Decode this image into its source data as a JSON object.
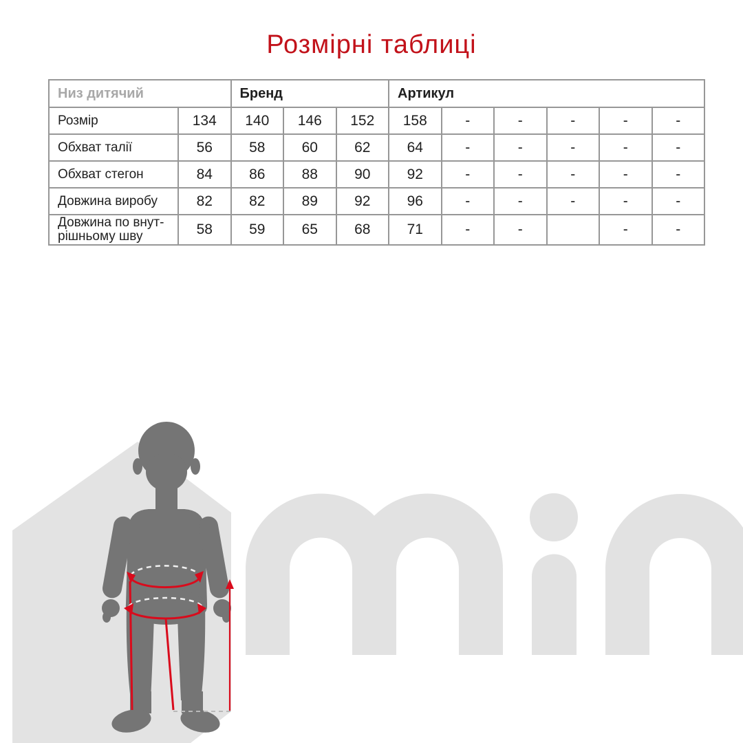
{
  "title": "Розмірні таблиці",
  "table": {
    "header": {
      "col1": "Низ дитячий",
      "col2": "Бренд",
      "col3": "Артикул"
    },
    "rows": [
      {
        "label": "Розмір",
        "values": [
          "134",
          "140",
          "146",
          "152",
          "158",
          "-",
          "-",
          "-",
          "-",
          "-"
        ]
      },
      {
        "label": "Обхват талії",
        "values": [
          "56",
          "58",
          "60",
          "62",
          "64",
          "-",
          "-",
          "-",
          "-",
          "-"
        ]
      },
      {
        "label": "Обхват стегон",
        "values": [
          "84",
          "86",
          "88",
          "90",
          "92",
          "-",
          "-",
          "-",
          "-",
          "-"
        ]
      },
      {
        "label": "Довжина виробу",
        "values": [
          "82",
          "82",
          "89",
          "92",
          "96",
          "-",
          "-",
          "-",
          "-",
          "-"
        ]
      },
      {
        "label": "Довжина по внут-\nрішньому шву",
        "values": [
          "58",
          "59",
          "65",
          "68",
          "71",
          "-",
          "-",
          "",
          "-",
          "-"
        ]
      }
    ]
  },
  "watermark": {
    "text": "min"
  },
  "colors": {
    "title-red": "#c2121a",
    "accent-red": "#d90b1c",
    "silhouette-gray": "#757575",
    "shape-gray": "#e3e3e3",
    "watermark-gray": "#e2e2e2",
    "border-gray": "#979797",
    "muted-text": "#a8a8a8",
    "text-dark": "#1f1f1f",
    "dash-gray": "#b9b9b9"
  }
}
